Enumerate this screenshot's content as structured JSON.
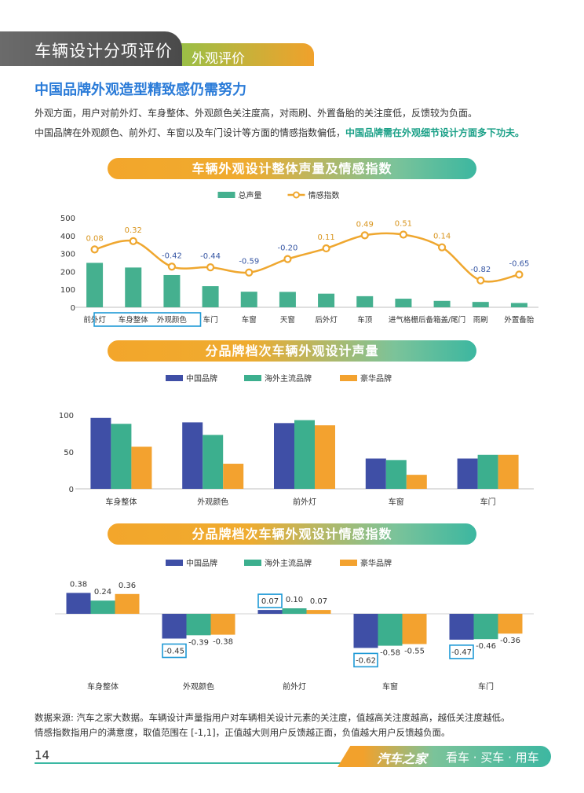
{
  "header": {
    "title": "车辆设计分项评价",
    "subtitle": "外观评价"
  },
  "headline": "中国品牌外观造型精致感仍需努力",
  "paragraphs": {
    "p1": "外观方面，用户对前外灯、车身整体、外观颜色关注度高，对雨刷、外置备胎的关注度低，反馈较为负面。",
    "p2_plain": "中国品牌在外观颜色、前外灯、车窗以及车门设计等方面的情感指数偏低，",
    "p2_highlight": "中国品牌需在外观细节设计方面多下功夫。"
  },
  "colors": {
    "china": "#3f4fa6",
    "overseas": "#3caf8e",
    "luxury": "#f3a22f",
    "volume": "#45b08f",
    "sentiment": "#efa72f",
    "pos_label": "#d8941c",
    "neg_label": "#3656a3",
    "highlight_box": "#1f9ad6"
  },
  "chart_data": [
    {
      "type": "bar",
      "title": "车辆外观设计整体声量及情感指数",
      "categories": [
        "前外灯",
        "车身整体",
        "外观颜色",
        "车门",
        "车窗",
        "天窗",
        "后外灯",
        "车顶",
        "进气格栅",
        "后备箱盖/尾门",
        "雨刷",
        "外置备胎"
      ],
      "series": [
        {
          "name": "总声量",
          "kind": "bar",
          "axis": "left",
          "values": [
            248,
            222,
            180,
            118,
            87,
            86,
            76,
            62,
            48,
            36,
            30,
            24
          ]
        },
        {
          "name": "情感指数",
          "kind": "line",
          "axis": "right",
          "values": [
            0.08,
            0.32,
            -0.42,
            -0.44,
            -0.59,
            -0.2,
            0.11,
            0.49,
            0.51,
            0.14,
            -0.82,
            -0.65
          ]
        }
      ],
      "yticks": [
        "0",
        "100",
        "200",
        "300",
        "400",
        "500"
      ],
      "ylim": [
        0,
        500
      ],
      "y2lim": [
        -1.6,
        1.0
      ],
      "highlighted_categories": [
        "前外灯",
        "车身整体",
        "外观颜色"
      ],
      "legend": "top-center"
    },
    {
      "type": "bar",
      "title": "分品牌档次车辆外观设计声量",
      "categories": [
        "车身整体",
        "外观颜色",
        "前外灯",
        "车窗",
        "车门"
      ],
      "series": [
        {
          "name": "中国品牌",
          "values": [
            96,
            90,
            89,
            41,
            41
          ]
        },
        {
          "name": "海外主流品牌",
          "values": [
            88,
            73,
            93,
            39,
            46
          ]
        },
        {
          "name": "豪华品牌",
          "values": [
            57,
            34,
            86,
            19,
            46
          ]
        }
      ],
      "yticks": [
        "0",
        "50",
        "100"
      ],
      "ylim": [
        0,
        100
      ],
      "legend": "top-center"
    },
    {
      "type": "bar",
      "title": "分品牌档次车辆外观设计情感指数",
      "categories": [
        "车身整体",
        "外观颜色",
        "前外灯",
        "车窗",
        "车门"
      ],
      "series": [
        {
          "name": "中国品牌",
          "values": [
            0.38,
            -0.45,
            0.07,
            -0.62,
            -0.47
          ]
        },
        {
          "name": "海外主流品牌",
          "values": [
            0.24,
            -0.39,
            0.1,
            -0.58,
            -0.46
          ]
        },
        {
          "name": "豪华品牌",
          "values": [
            0.36,
            -0.38,
            0.07,
            -0.55,
            -0.36
          ]
        }
      ],
      "ylim": [
        -0.7,
        0.45
      ],
      "highlighted_china": [
        "外观颜色",
        "前外灯",
        "车窗",
        "车门"
      ],
      "legend": "top-center"
    }
  ],
  "footnotes": {
    "line1": "数据来源: 汽车之家大数据。车辆设计声量指用户对车辆相关设计元素的关注度，值越高关注度越高，越低关注度越低。",
    "line2": "情感指数指用户的满意度，取值范围在 [-1,1]，正值越大则用户反馈越正面，负值越大用户反馈越负面。"
  },
  "footer": {
    "page": "14",
    "brand": "汽车之家",
    "slogan": "看车 · 买车 · 用车"
  }
}
